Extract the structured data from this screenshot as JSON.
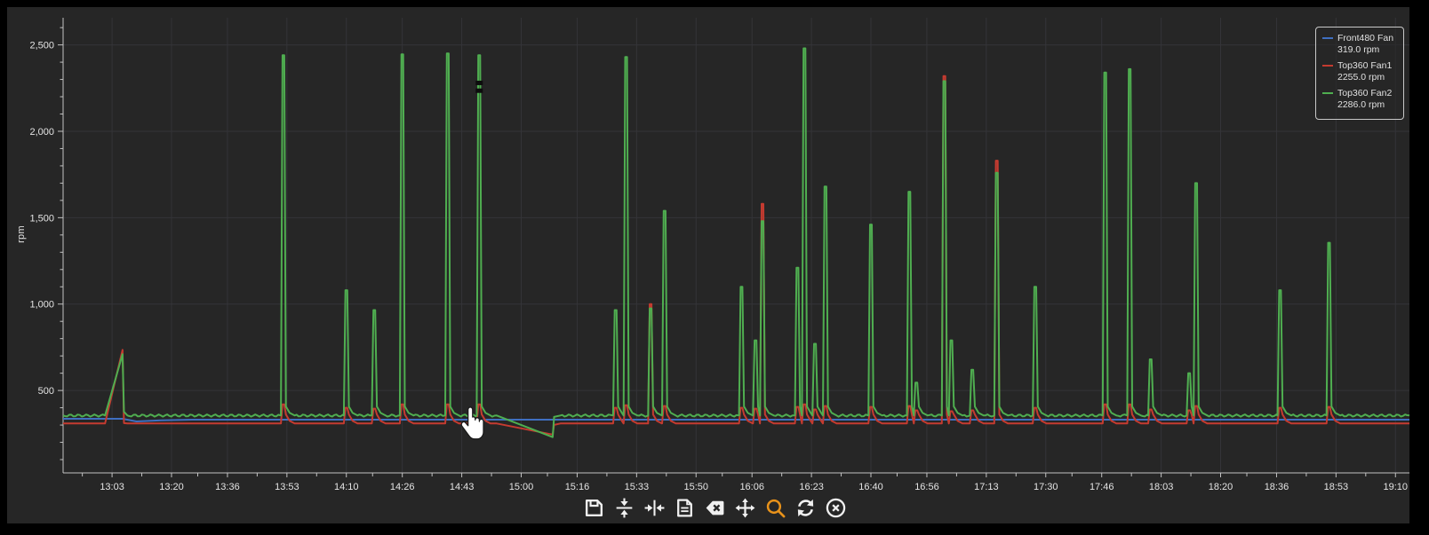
{
  "colors": {
    "page_bg": "#000000",
    "panel_bg": "#262626",
    "grid": "#343438",
    "axis": "#c2c2c2",
    "tick_label": "#e4e4e4",
    "legend_border": "#c8c8c8",
    "legend_text": "#e0e0e0",
    "toolbar_icon": "#f0f0f0",
    "toolbar_zoom_icon": "#e8921a",
    "series_blue": "#3f6fc1",
    "series_red": "#c53b30",
    "series_green": "#4fae50"
  },
  "chart_data": {
    "type": "line",
    "title": "",
    "xlabel": "",
    "ylabel": "rpm",
    "grid": true,
    "x_axis": {
      "domain_start": "12:49",
      "domain_end": "19:14",
      "major_tick_labels": [
        "13:03",
        "13:20",
        "13:36",
        "13:53",
        "14:10",
        "14:26",
        "14:43",
        "15:00",
        "15:16",
        "15:33",
        "15:50",
        "16:06",
        "16:23",
        "16:40",
        "16:56",
        "17:13",
        "17:30",
        "17:46",
        "18:03",
        "18:20",
        "18:36",
        "18:53",
        "19:10"
      ]
    },
    "y_axis": {
      "min": 0,
      "max": 2650,
      "major_ticks": [
        {
          "value": 500,
          "label": "500"
        },
        {
          "value": 1000,
          "label": "1,000"
        },
        {
          "value": 1500,
          "label": "1,500"
        },
        {
          "value": 2000,
          "label": "2,000"
        },
        {
          "value": 2500,
          "label": "2,500"
        }
      ],
      "minor_step": 100,
      "label": "rpm"
    },
    "legend": {
      "position": "top-right",
      "entries": [
        {
          "name": "Front480 Fan",
          "value": "319.0 rpm",
          "color": "#3f6fc1"
        },
        {
          "name": "Top360 Fan1",
          "value": "2255.0 rpm",
          "color": "#c53b30"
        },
        {
          "name": "Top360 Fan2",
          "value": "2286.0 rpm",
          "color": "#4fae50"
        }
      ]
    },
    "series": [
      {
        "name": "Front480 Fan",
        "color": "#3f6fc1",
        "current": "319.0 rpm",
        "points": [
          [
            "12:49",
            336
          ],
          [
            "13:06",
            336
          ],
          [
            "13:10",
            321
          ],
          [
            "13:17",
            327
          ],
          [
            "13:26",
            331
          ],
          [
            "19:14",
            331
          ]
        ]
      },
      {
        "name": "Top360 Fan1",
        "color": "#c53b30",
        "current": "2255.0 rpm",
        "baseline_rpm": 309
      },
      {
        "name": "Top360 Fan2",
        "color": "#4fae50",
        "current": "2286.0 rpm",
        "baseline_rpm": 355
      }
    ],
    "events": [
      {
        "type": "ramp",
        "start": "13:01",
        "peak_time": "13:06",
        "green": 710,
        "red": 735
      },
      {
        "time": "13:52",
        "green": 2440,
        "red": 420
      },
      {
        "time": "14:10",
        "green": 1080,
        "red": 400
      },
      {
        "time": "14:18",
        "green": 965,
        "red": 395
      },
      {
        "time": "14:26",
        "green": 2445,
        "red": 420
      },
      {
        "time": "14:39",
        "green": 2450,
        "red": 420
      },
      {
        "time": "14:48",
        "green": 2440,
        "red": 420
      },
      {
        "type": "dip",
        "start": "14:53",
        "end": "15:09",
        "green_low": 230,
        "red_low": 245
      },
      {
        "time": "15:27",
        "green": 965,
        "red": 400
      },
      {
        "time": "15:30",
        "green": 2430,
        "red": 415
      },
      {
        "time": "15:37",
        "green": 975,
        "red": 1000
      },
      {
        "time": "15:41",
        "green": 1540,
        "red": 410
      },
      {
        "time": "16:03",
        "green": 1100,
        "red": 400
      },
      {
        "time": "16:07",
        "green": 790,
        "red": 395
      },
      {
        "time": "16:09",
        "green": 1480,
        "red": 1580
      },
      {
        "time": "16:19",
        "green": 1210,
        "red": 405
      },
      {
        "time": "16:21",
        "green": 2480,
        "red": 420
      },
      {
        "time": "16:24",
        "green": 770,
        "red": 390
      },
      {
        "time": "16:27",
        "green": 1680,
        "red": 410
      },
      {
        "time": "16:40",
        "green": 1460,
        "red": 405
      },
      {
        "time": "16:51",
        "green": 1650,
        "red": 410
      },
      {
        "time": "16:53",
        "green": 545,
        "red": 385
      },
      {
        "time": "17:01",
        "green": 2290,
        "red": 2320
      },
      {
        "time": "17:03",
        "green": 790,
        "red": 380
      },
      {
        "time": "17:09",
        "green": 620,
        "red": 385
      },
      {
        "time": "17:16",
        "green": 1760,
        "red": 1830
      },
      {
        "time": "17:27",
        "green": 1100,
        "red": 400
      },
      {
        "time": "17:47",
        "green": 2340,
        "red": 420
      },
      {
        "time": "17:54",
        "green": 2360,
        "red": 420
      },
      {
        "time": "18:00",
        "green": 680,
        "red": 390
      },
      {
        "time": "18:11",
        "green": 600,
        "red": 385
      },
      {
        "time": "18:13",
        "green": 1700,
        "red": 410
      },
      {
        "time": "18:37",
        "green": 1080,
        "red": 400
      },
      {
        "time": "18:51",
        "green": 1355,
        "red": 405
      }
    ],
    "annotations": {
      "black_marks": {
        "time": "14:48",
        "rpm": [
          2280,
          2235
        ]
      }
    }
  },
  "toolbar": {
    "buttons": [
      {
        "name": "save"
      },
      {
        "name": "fit-vertical"
      },
      {
        "name": "fit-horizontal"
      },
      {
        "name": "report"
      },
      {
        "name": "clear"
      },
      {
        "name": "pan"
      },
      {
        "name": "zoom",
        "active": true
      },
      {
        "name": "refresh"
      },
      {
        "name": "cancel"
      }
    ]
  },
  "cursor": {
    "type": "hand-pointer"
  }
}
